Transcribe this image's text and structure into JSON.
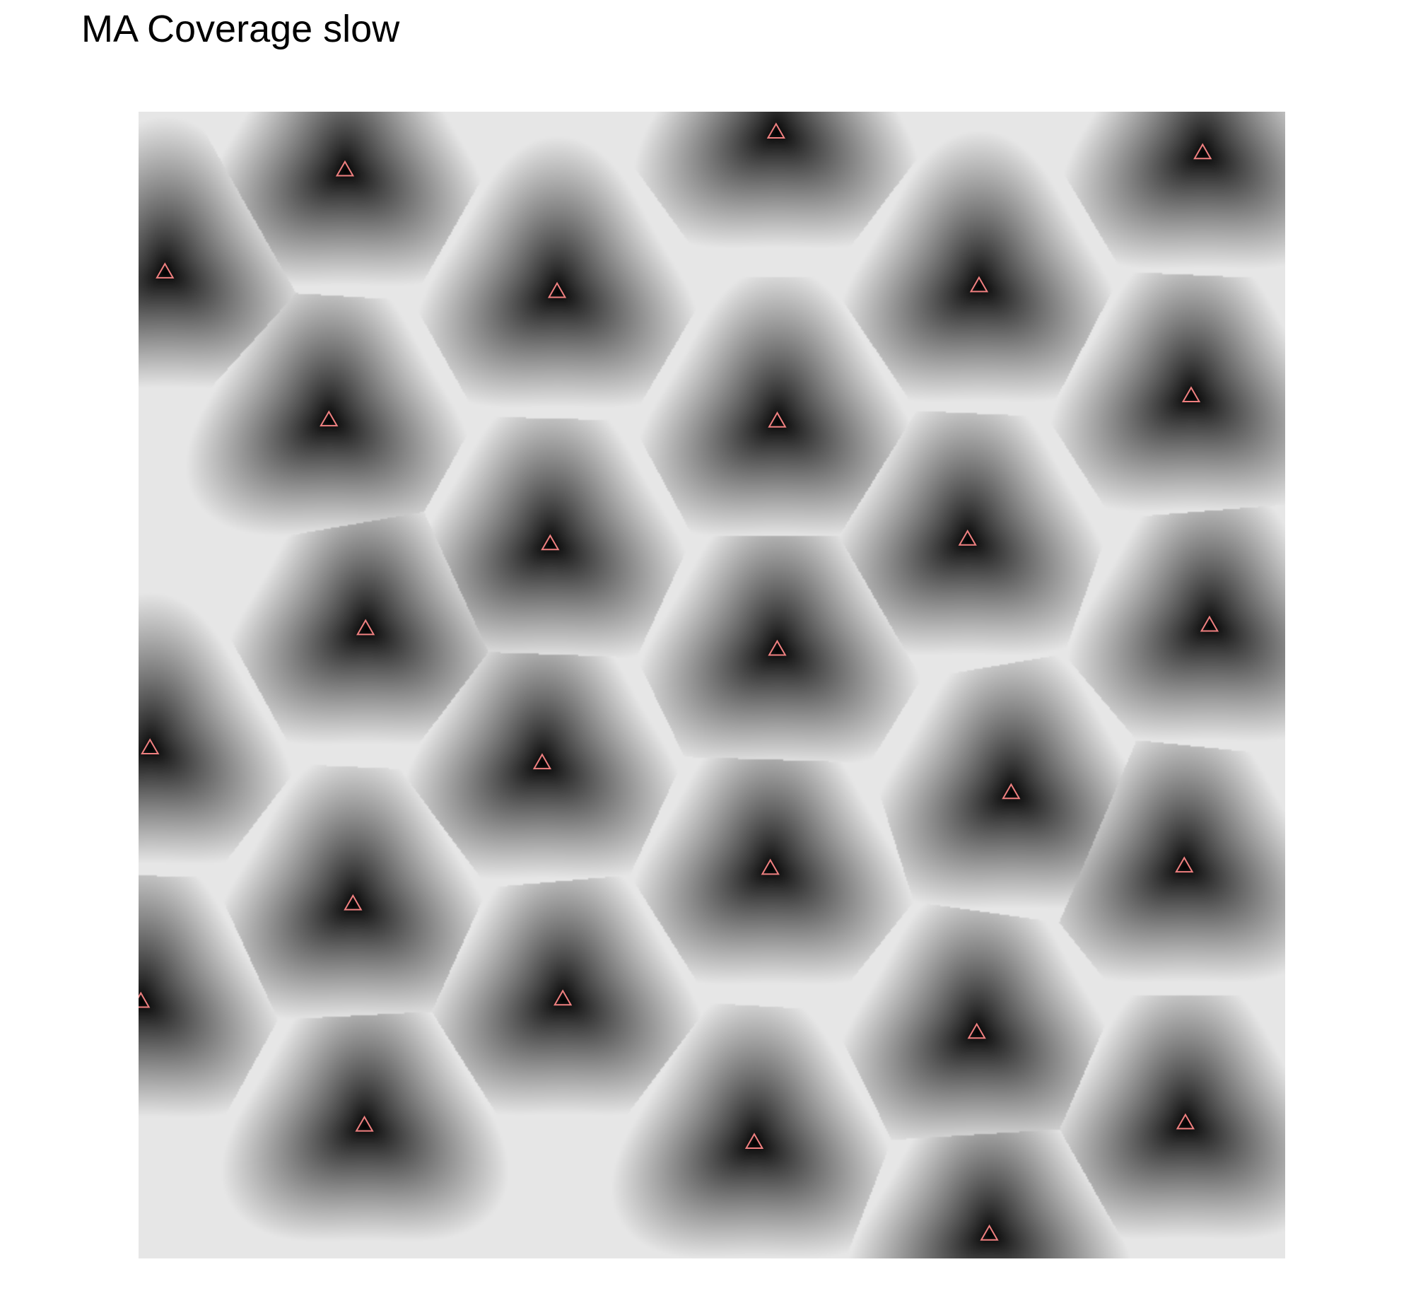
{
  "chart_data": {
    "type": "heatmap",
    "title": "MA Coverage slow",
    "xlabel": "",
    "ylabel": "",
    "xlim": [
      0,
      1
    ],
    "ylim": [
      0,
      1
    ],
    "grid": false,
    "legend": "none",
    "colors": {
      "background": "#ffffff",
      "near": "#000000",
      "far": "#e6e6e6",
      "marker": "#f08080"
    },
    "marker_shape": "open-triangle",
    "sites": [
      {
        "x": 0.18,
        "y": 0.949
      },
      {
        "x": 0.556,
        "y": 0.982
      },
      {
        "x": 0.928,
        "y": 0.964
      },
      {
        "x": 0.023,
        "y": 0.86
      },
      {
        "x": 0.365,
        "y": 0.843
      },
      {
        "x": 0.733,
        "y": 0.848
      },
      {
        "x": 0.166,
        "y": 0.731
      },
      {
        "x": 0.557,
        "y": 0.73
      },
      {
        "x": 0.918,
        "y": 0.752
      },
      {
        "x": 0.359,
        "y": 0.623
      },
      {
        "x": 0.723,
        "y": 0.627
      },
      {
        "x": 0.198,
        "y": 0.549
      },
      {
        "x": 0.557,
        "y": 0.531
      },
      {
        "x": 0.934,
        "y": 0.552
      },
      {
        "x": 0.01,
        "y": 0.445
      },
      {
        "x": 0.352,
        "y": 0.432
      },
      {
        "x": 0.761,
        "y": 0.406
      },
      {
        "x": 0.551,
        "y": 0.34
      },
      {
        "x": 0.912,
        "y": 0.342
      },
      {
        "x": 0.187,
        "y": 0.309
      },
      {
        "x": 0.002,
        "y": 0.224
      },
      {
        "x": 0.37,
        "y": 0.226
      },
      {
        "x": 0.731,
        "y": 0.197
      },
      {
        "x": 0.197,
        "y": 0.116
      },
      {
        "x": 0.537,
        "y": 0.101
      },
      {
        "x": 0.913,
        "y": 0.118
      },
      {
        "x": 0.742,
        "y": 0.021
      }
    ]
  }
}
